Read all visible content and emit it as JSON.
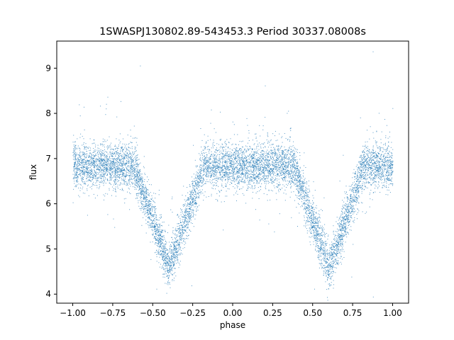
{
  "chart_data": {
    "type": "scatter",
    "title": "1SWASPJ130802.89-543453.3 Period 30337.08008s",
    "xlabel": "phase",
    "ylabel": "flux",
    "xlim": [
      -1.1,
      1.1
    ],
    "ylim": [
      3.8,
      9.6
    ],
    "x_ticks": [
      -1.0,
      -0.75,
      -0.5,
      -0.25,
      0.0,
      0.25,
      0.5,
      0.75,
      1.0
    ],
    "x_tick_labels": [
      "−1.00",
      "−0.75",
      "−0.50",
      "−0.25",
      "0.00",
      "0.25",
      "0.50",
      "0.75",
      "1.00"
    ],
    "y_ticks": [
      4,
      5,
      6,
      7,
      8,
      9
    ],
    "y_tick_labels": [
      "4",
      "5",
      "6",
      "7",
      "8",
      "9"
    ],
    "grid": false,
    "marker_color": "#1f77b4",
    "series": [
      {
        "baseline_flux": 6.85,
        "baseline_scatter": 0.25,
        "phase_range": [
          -1.0,
          1.0
        ],
        "eclipses": [
          {
            "center_phase": -0.4,
            "min_flux": 4.6,
            "half_width": 0.22
          },
          {
            "center_phase": 0.6,
            "min_flux": 4.6,
            "half_width": 0.22
          }
        ],
        "approx_points": 9000
      }
    ]
  }
}
